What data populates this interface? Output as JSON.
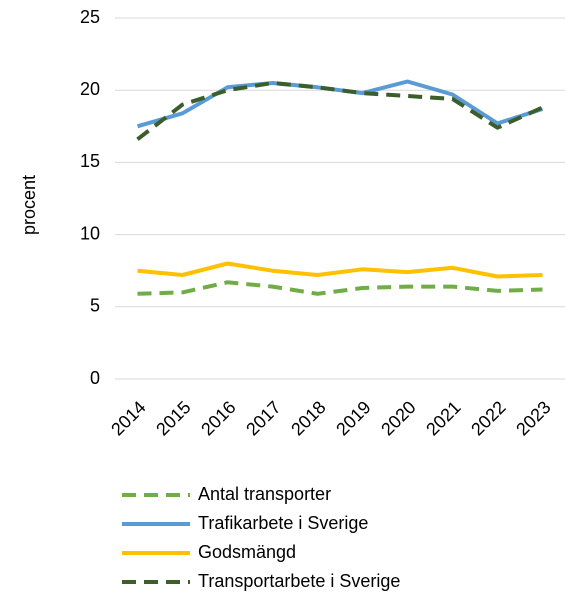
{
  "chart_data": {
    "type": "line",
    "y_label": "procent",
    "categories": [
      "2014",
      "2015",
      "2016",
      "2017",
      "2018",
      "2019",
      "2020",
      "2021",
      "2022",
      "2023"
    ],
    "series": [
      {
        "name": "Antal transporter",
        "color": "#70ad47",
        "dashed": true,
        "values": [
          5.9,
          6.0,
          6.7,
          6.4,
          5.9,
          6.3,
          6.4,
          6.4,
          6.1,
          6.2
        ]
      },
      {
        "name": "Trafikarbete i Sverige",
        "color": "#5b9bd5",
        "dashed": false,
        "values": [
          17.5,
          18.4,
          20.2,
          20.5,
          20.2,
          19.8,
          20.6,
          19.7,
          17.7,
          18.7
        ]
      },
      {
        "name": "Godsmängd",
        "color": "#ffc000",
        "dashed": false,
        "values": [
          7.5,
          7.2,
          8.0,
          7.5,
          7.2,
          7.6,
          7.4,
          7.7,
          7.1,
          7.2
        ]
      },
      {
        "name": "Transportarbete i Sverige",
        "color": "#3b5e2b",
        "dashed": true,
        "values": [
          16.6,
          19.0,
          20.0,
          20.5,
          20.2,
          19.8,
          19.6,
          19.4,
          17.4,
          18.8
        ]
      }
    ],
    "ylim": [
      0,
      25
    ],
    "yticks": [
      0,
      5,
      10,
      15,
      20,
      25
    ],
    "grid": true,
    "legend": "bottom"
  }
}
